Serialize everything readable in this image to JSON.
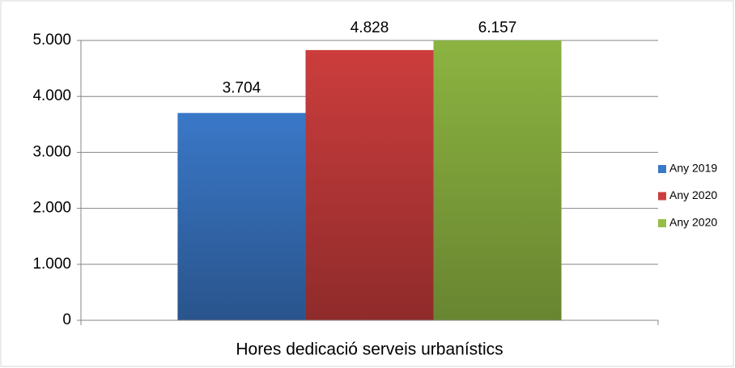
{
  "chart_data": {
    "type": "bar",
    "categories": [
      "Hores dedicació serveis urbanístics"
    ],
    "series": [
      {
        "name": "Any 2019",
        "color": "#3a78c8",
        "values": [
          3704
        ],
        "value_labels": [
          "3.704"
        ]
      },
      {
        "name": "Any 2020",
        "color": "#cc3d3d",
        "values": [
          4828
        ],
        "value_labels": [
          "4.828"
        ]
      },
      {
        "name": "Any 2020",
        "color": "#94be45",
        "values": [
          6157
        ],
        "value_labels": [
          "6.157"
        ]
      }
    ],
    "ylim": [
      0,
      5000
    ],
    "yticks": [
      0,
      {
        "value": 1000,
        "label": "1.000"
      },
      {
        "value": 2000,
        "label": "2.000"
      },
      {
        "value": 3000,
        "label": "3.000"
      },
      {
        "value": 4000,
        "label": "4.000"
      },
      {
        "value": 5000,
        "label": "5.000"
      }
    ],
    "grid": true,
    "legend": "right"
  }
}
